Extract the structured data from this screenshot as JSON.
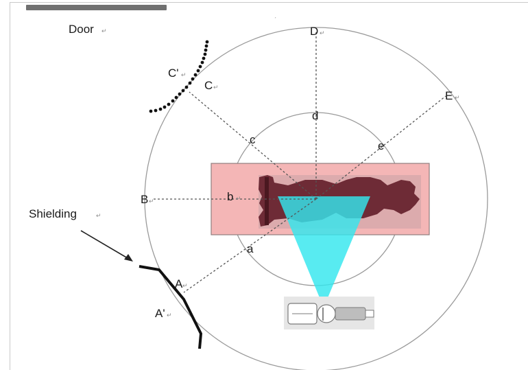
{
  "labels": {
    "door": "Door",
    "shielding": "Shielding",
    "A": "A",
    "A_prime": "A'",
    "B": "B",
    "C": "C",
    "C_prime": "C'",
    "D": "D",
    "E": "E",
    "a": "a",
    "b": "b",
    "c": "c",
    "d": "d",
    "e": "e"
  },
  "colors": {
    "circle": "#9a9a9a",
    "dashed_line": "#555555",
    "table": "#f4b6b6",
    "table_border": "#8f7f7f",
    "patient": "#6e2b36",
    "beam": "#33e6ee",
    "shielding": "#111111",
    "door_arc": "#111111"
  },
  "icons": {
    "patient": "patient-silhouette-icon",
    "xray_tube": "xray-tube-icon"
  },
  "mark_glyph": "↵"
}
